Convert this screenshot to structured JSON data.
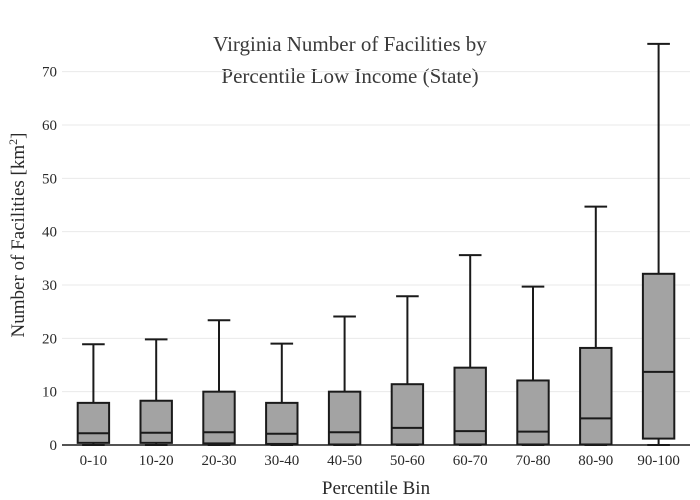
{
  "chart_data": {
    "type": "box",
    "title_lines": [
      "Virginia Number of Facilities by",
      "Percentile Low Income (State)"
    ],
    "xlabel": "Percentile Bin",
    "ylabel_main": "Number of Facilities  [km",
    "ylabel_sup": "2",
    "ylabel_end": "]",
    "ylim": [
      0,
      75
    ],
    "yticks": [
      0,
      10,
      20,
      30,
      40,
      50,
      60,
      70
    ],
    "grid": true,
    "categories": [
      "0-10",
      "10-20",
      "20-30",
      "30-40",
      "40-50",
      "50-60",
      "60-70",
      "70-80",
      "80-90",
      "90-100"
    ],
    "boxes": [
      {
        "min": 0,
        "q1": 0.4,
        "median": 2.2,
        "q3": 7.9,
        "max": 18.9
      },
      {
        "min": 0,
        "q1": 0.4,
        "median": 2.3,
        "q3": 8.3,
        "max": 19.8
      },
      {
        "min": 0,
        "q1": 0.3,
        "median": 2.4,
        "q3": 10.0,
        "max": 23.4
      },
      {
        "min": 0,
        "q1": 0.2,
        "median": 2.1,
        "q3": 7.9,
        "max": 19.0
      },
      {
        "min": 0,
        "q1": 0.1,
        "median": 2.4,
        "q3": 10.0,
        "max": 24.1
      },
      {
        "min": 0,
        "q1": 0.1,
        "median": 3.2,
        "q3": 11.4,
        "max": 27.9
      },
      {
        "min": 0,
        "q1": 0.1,
        "median": 2.6,
        "q3": 14.5,
        "max": 35.6
      },
      {
        "min": 0,
        "q1": 0.1,
        "median": 2.5,
        "q3": 12.1,
        "max": 29.7
      },
      {
        "min": 0,
        "q1": 0.1,
        "median": 5.0,
        "q3": 18.2,
        "max": 44.7
      },
      {
        "min": 0,
        "q1": 1.2,
        "median": 13.7,
        "q3": 32.1,
        "max": 75.2
      }
    ]
  }
}
